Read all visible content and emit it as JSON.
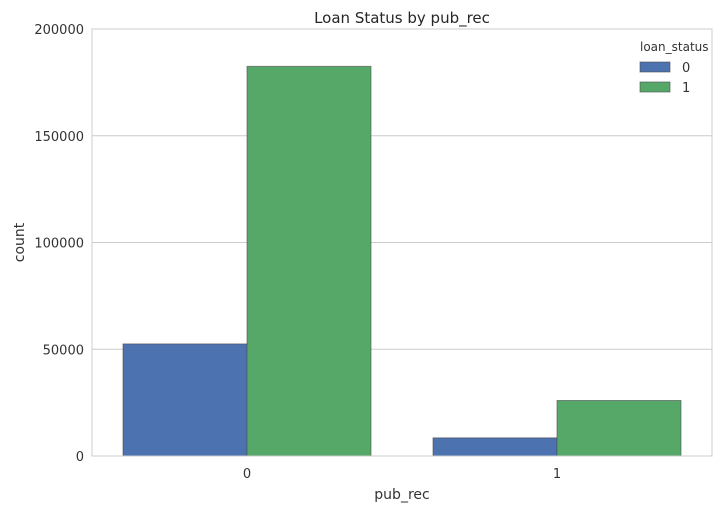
{
  "chart_data": {
    "type": "bar",
    "title": "Loan Status by pub_rec",
    "xlabel": "pub_rec",
    "ylabel": "count",
    "categories": [
      "0",
      "1"
    ],
    "ylim": [
      0,
      200000
    ],
    "yticks": [
      0,
      50000,
      100000,
      150000,
      200000
    ],
    "ytick_labels": [
      "0",
      "50000",
      "100000",
      "150000",
      "200000"
    ],
    "grid": "horizontal",
    "legend": {
      "title": "loan_status",
      "placement": "top-right"
    },
    "series": [
      {
        "name": "0",
        "color": "#4c72b0",
        "values": [
          52500,
          8500
        ]
      },
      {
        "name": "1",
        "color": "#55a868",
        "values": [
          182500,
          26000
        ]
      }
    ]
  }
}
